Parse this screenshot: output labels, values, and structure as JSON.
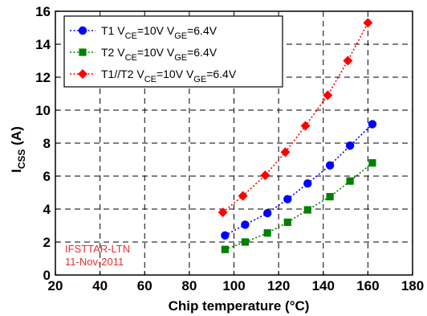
{
  "chart_data": {
    "type": "scatter",
    "xlabel": "Chip temperature (°C)",
    "ylabel_main": "I",
    "ylabel_sub": "CSS",
    "ylabel_unit": " (A)",
    "xlim": [
      20,
      180
    ],
    "ylim": [
      0,
      16
    ],
    "xticks": [
      20,
      40,
      60,
      80,
      100,
      120,
      140,
      160,
      180
    ],
    "yticks": [
      0,
      2,
      4,
      6,
      8,
      10,
      12,
      14,
      16
    ],
    "grid": true,
    "legend_position": "top-left",
    "series": [
      {
        "name_parts": [
          "T1 V",
          "CE",
          "=10V V",
          "GE",
          "=6.4V"
        ],
        "color": "#0000ff",
        "marker": "circle",
        "x": [
          96,
          105,
          115,
          124,
          133,
          143,
          152,
          162
        ],
        "y": [
          2.4,
          3.05,
          3.75,
          4.6,
          5.55,
          6.65,
          7.85,
          9.15
        ]
      },
      {
        "name_parts": [
          "T2 V",
          "CE",
          "=10V V",
          "GE",
          "=6.4V"
        ],
        "color": "#008000",
        "marker": "square",
        "x": [
          96,
          105,
          115,
          124,
          133,
          143,
          152,
          162
        ],
        "y": [
          1.55,
          2.0,
          2.55,
          3.2,
          3.95,
          4.75,
          5.7,
          6.8
        ]
      },
      {
        "name_parts": [
          "T1//T2  V",
          "CE",
          "=10V V",
          "GE",
          "=6.4V"
        ],
        "color": "#ff0000",
        "marker": "diamond",
        "x": [
          95,
          104,
          114,
          123,
          132,
          142,
          151,
          160
        ],
        "y": [
          3.8,
          4.8,
          6.05,
          7.45,
          9.05,
          10.9,
          13.0,
          15.3
        ]
      }
    ],
    "annotation": [
      "IFSTTAR-LTN",
      "11-Nov-2011"
    ]
  }
}
